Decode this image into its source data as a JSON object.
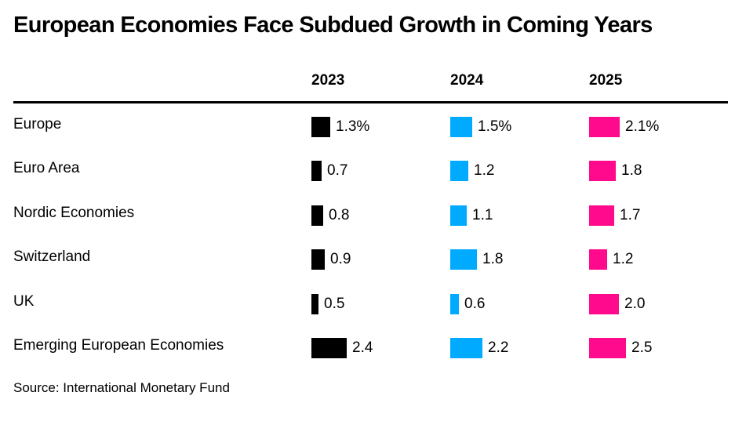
{
  "chart_data": {
    "type": "bar",
    "title": "European Economies Face Subdued Growth in Coming Years",
    "source": "Source: International Monetary Fund",
    "categories": [
      "Europe",
      "Euro Area",
      "Nordic Economies",
      "Switzerland",
      "UK",
      "Emerging European Economies"
    ],
    "series": [
      {
        "name": "2023",
        "color": "#000000",
        "values": [
          1.3,
          0.7,
          0.8,
          0.9,
          0.5,
          2.4
        ],
        "labels": [
          "1.3%",
          "0.7",
          "0.8",
          "0.9",
          "0.5",
          "2.4"
        ]
      },
      {
        "name": "2024",
        "color": "#00aaff",
        "values": [
          1.5,
          1.2,
          1.1,
          1.8,
          0.6,
          2.2
        ],
        "labels": [
          "1.5%",
          "1.2",
          "1.1",
          "1.8",
          "0.6",
          "2.2"
        ]
      },
      {
        "name": "2025",
        "color": "#ff0a8c",
        "values": [
          2.1,
          1.8,
          1.7,
          1.2,
          2.0,
          2.5
        ],
        "labels": [
          "2.1%",
          "1.8",
          "1.7",
          "1.2",
          "2.0",
          "2.5"
        ]
      }
    ]
  }
}
